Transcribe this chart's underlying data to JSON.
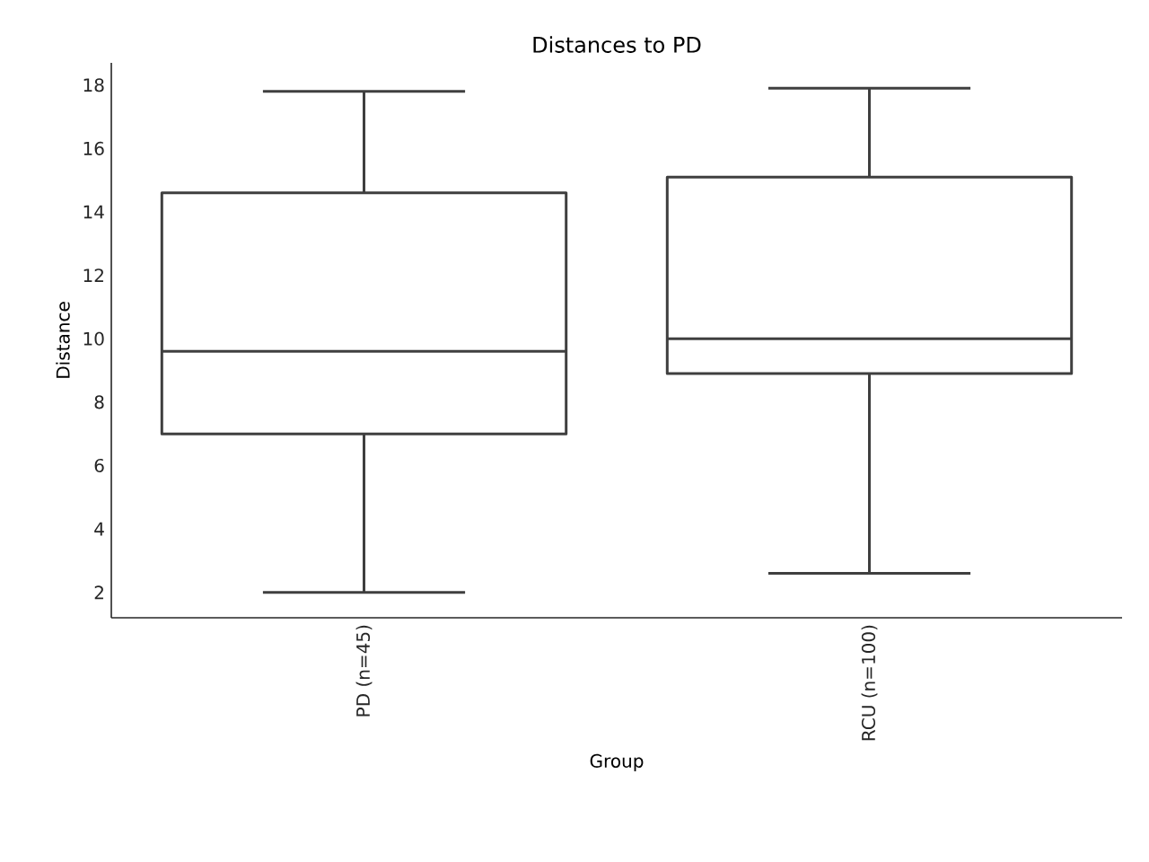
{
  "chart_data": {
    "type": "box",
    "title": "Distances to PD",
    "xlabel": "Group",
    "ylabel": "Distance",
    "categories": [
      "PD (n=45)",
      "RCU (n=100)"
    ],
    "boxes": [
      {
        "low": 2.0,
        "q1": 7.0,
        "median": 9.6,
        "q3": 14.6,
        "high": 17.8
      },
      {
        "low": 2.6,
        "q1": 8.9,
        "median": 10.0,
        "q3": 15.1,
        "high": 17.9
      }
    ],
    "ylim": [
      1.2,
      18.7
    ],
    "yticks": [
      2,
      4,
      6,
      8,
      10,
      12,
      14,
      16,
      18
    ]
  }
}
